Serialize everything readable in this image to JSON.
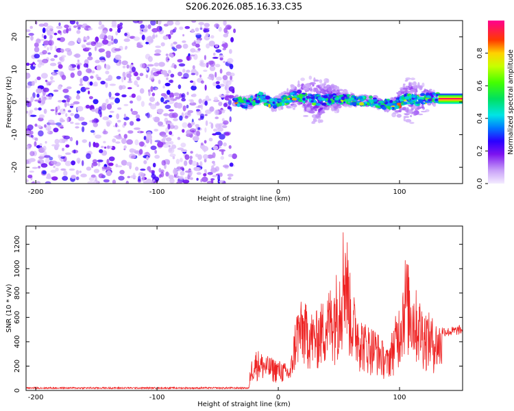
{
  "chart_data": [
    {
      "type": "heatmap",
      "title": "S206.2026.085.16.33.C35",
      "xlabel": "Height of straight line (km)",
      "ylabel": "Frequency (Hz)",
      "xlim": [
        -208,
        152
      ],
      "ylim": [
        -25,
        25
      ],
      "x_ticks": [
        -200,
        -100,
        0,
        100
      ],
      "y_ticks": [
        -20,
        -10,
        0,
        10,
        20
      ],
      "noise_region_x": [
        -208,
        -36
      ],
      "signal_track": {
        "x": [
          -36,
          -25,
          -15,
          -5,
          5,
          15,
          25,
          35,
          45,
          55,
          65,
          75,
          85,
          95,
          105,
          115,
          125,
          135,
          152
        ],
        "freq": [
          0.5,
          -0.5,
          1.5,
          -0.5,
          0.5,
          2.0,
          1.0,
          0.5,
          1.0,
          1.0,
          0.5,
          0.5,
          -0.5,
          -1.0,
          1.0,
          0.5,
          1.5,
          1.0,
          1.0
        ]
      },
      "colorbar": {
        "label": "Normalized spectral amplitude",
        "range": [
          0,
          1
        ],
        "ticks": [
          0.0,
          0.2,
          0.4,
          0.6,
          0.8
        ]
      }
    },
    {
      "type": "line",
      "xlabel": "Height of straight line (km)",
      "ylabel": "SNR (10 * v/v)",
      "xlim": [
        -208,
        152
      ],
      "ylim": [
        0,
        1350
      ],
      "x_ticks": [
        -200,
        -100,
        0,
        100
      ],
      "y_ticks": [
        0,
        200,
        400,
        600,
        800,
        1000,
        1200
      ],
      "series": [
        {
          "name": "SNR",
          "color": "#ee2222",
          "x": [
            -208,
            -24,
            -23,
            -18,
            -10,
            0,
            10,
            15,
            20,
            30,
            40,
            50,
            55,
            60,
            70,
            80,
            90,
            100,
            105,
            110,
            120,
            130,
            140,
            152
          ],
          "y": [
            20,
            20,
            200,
            300,
            250,
            220,
            180,
            600,
            650,
            550,
            700,
            900,
            1330,
            750,
            500,
            450,
            300,
            650,
            1000,
            800,
            600,
            500,
            480,
            500
          ]
        }
      ]
    }
  ]
}
